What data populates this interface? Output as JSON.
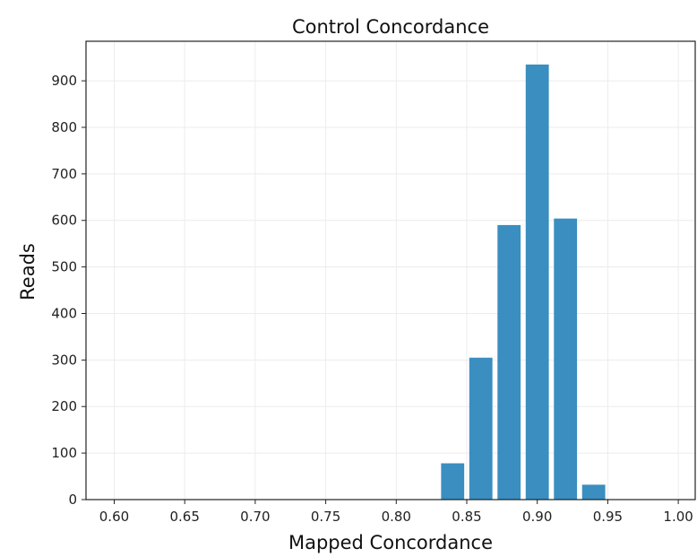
{
  "chart_data": {
    "type": "bar",
    "title": "Control Concordance",
    "xlabel": "Mapped Concordance",
    "ylabel": "Reads",
    "xlim": [
      0.58,
      1.012
    ],
    "ylim": [
      0,
      985
    ],
    "x_ticks": [
      "0.60",
      "0.65",
      "0.70",
      "0.75",
      "0.80",
      "0.85",
      "0.90",
      "0.95",
      "1.00"
    ],
    "y_ticks": [
      "0",
      "100",
      "200",
      "300",
      "400",
      "500",
      "600",
      "700",
      "800",
      "900"
    ],
    "bin_width": 0.02,
    "bars": [
      {
        "x": 0.84,
        "value": 78
      },
      {
        "x": 0.86,
        "value": 305
      },
      {
        "x": 0.88,
        "value": 590
      },
      {
        "x": 0.9,
        "value": 935
      },
      {
        "x": 0.92,
        "value": 604
      },
      {
        "x": 0.94,
        "value": 32
      }
    ],
    "bar_color": "#3a8ec0",
    "grid": true,
    "legend": "none"
  }
}
